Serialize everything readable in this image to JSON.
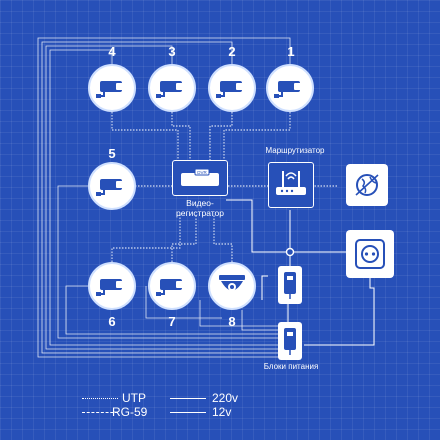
{
  "cameras": [
    {
      "number": "4",
      "type": "bullet-camera"
    },
    {
      "number": "3",
      "type": "bullet-camera"
    },
    {
      "number": "2",
      "type": "bullet-camera"
    },
    {
      "number": "1",
      "type": "bullet-camera"
    },
    {
      "number": "5",
      "type": "bullet-camera"
    },
    {
      "number": "6",
      "type": "bullet-camera"
    },
    {
      "number": "7",
      "type": "bullet-camera"
    },
    {
      "number": "8",
      "type": "dome-camera"
    }
  ],
  "dvr": {
    "badge": "DVR",
    "label_line1": "Видео-",
    "label_line2": "регистратор"
  },
  "router": {
    "label": "Маршрутизатор"
  },
  "internet": {
    "icon": "globe-icon"
  },
  "power_outlet": {
    "icon": "socket-icon"
  },
  "power_supplies": {
    "label": "Блоки питания"
  },
  "legend": {
    "utp": "UTP",
    "rg59": "RG-59",
    "v220": "220v",
    "v12": "12v"
  },
  "colors": {
    "background": "#2750b8",
    "line": "#ffffff",
    "node_fill": "#ffffff",
    "icon": "#2750b8"
  }
}
